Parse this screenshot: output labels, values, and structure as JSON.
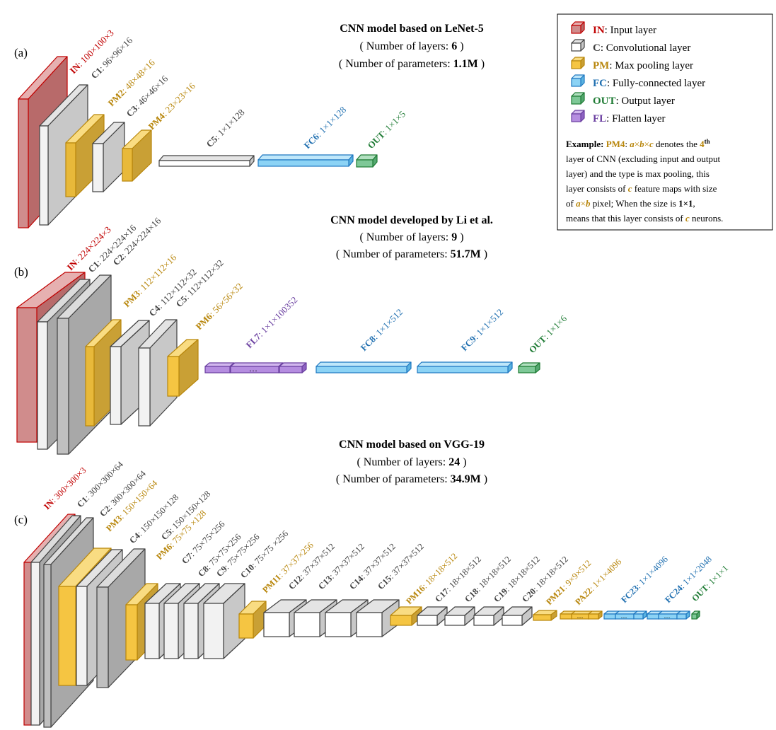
{
  "colors": {
    "input": {
      "front": "#d08c8c",
      "side": "#b86a6a",
      "top": "#e6b0b0",
      "stroke": "#c00000",
      "text": "#c00000"
    },
    "conv": {
      "front": "#ffffff",
      "side": "#c8c8c8",
      "top": "#e4e4e4",
      "stroke": "#404040",
      "text": "#404040"
    },
    "conv_big": {
      "front": "#c0c0c0",
      "side": "#a8a8a8",
      "top": "#dcdcdc",
      "stroke": "#404040"
    },
    "pool": {
      "front": "#f5c542",
      "side": "#c9a035",
      "top": "#f9dc82",
      "stroke": "#b8860b",
      "text": "#b8860b"
    },
    "fc": {
      "front": "#8cd3f5",
      "side": "#5bb3e0",
      "top": "#bfe7fa",
      "stroke": "#1f78c1",
      "text": "#1f6fb0"
    },
    "out": {
      "front": "#7ec897",
      "side": "#54a870",
      "top": "#b2e0c0",
      "stroke": "#1e7b34",
      "text": "#1e7b34"
    },
    "flatten": {
      "front": "#b58de0",
      "side": "#8e63c2",
      "top": "#d2b8ee",
      "stroke": "#6a3fa0",
      "text": "#6a3fa0"
    }
  },
  "panels": {
    "a": {
      "label": "(a)",
      "title": "CNN model based on LeNet-5",
      "layers_line_prefix": "( Number of layers: ",
      "layers_value": "6",
      "layers_line_suffix": " )",
      "params_line_prefix": "( Number of parameters: ",
      "params_value": "1.1M",
      "params_line_suffix": " )",
      "layer_labels": [
        {
          "name": "IN",
          "size": ": 100×100×3",
          "kind": "input"
        },
        {
          "name": "C1",
          "size": ": 96×96×16",
          "kind": "conv"
        },
        {
          "name": "PM2",
          "size": ": 48×48×16",
          "kind": "pool"
        },
        {
          "name": "C3",
          "size": ": 46×46×16",
          "kind": "conv"
        },
        {
          "name": "PM4",
          "size": ": 23×23×16",
          "kind": "pool"
        },
        {
          "name": "C5",
          "size": ": 1×1×128",
          "kind": "conv"
        },
        {
          "name": "FC6",
          "size": ": 1×1×128",
          "kind": "fc"
        },
        {
          "name": "OUT",
          "size": ": 1×1×5",
          "kind": "out"
        }
      ]
    },
    "b": {
      "label": "(b)",
      "title": "CNN model developed by Li et al.",
      "layers_line_prefix": "( Number of layers: ",
      "layers_value": "9",
      "layers_line_suffix": " )",
      "params_line_prefix": "( Number of parameters: ",
      "params_value": "51.7M",
      "params_line_suffix": " )",
      "layer_labels": [
        {
          "name": "IN",
          "size": ": 224×224×3",
          "kind": "input"
        },
        {
          "name": "C1",
          "size": ": 224×224×16",
          "kind": "conv"
        },
        {
          "name": "C2",
          "size": ": 224×224×16",
          "kind": "conv"
        },
        {
          "name": "PM3",
          "size": ": 112×112×16",
          "kind": "pool"
        },
        {
          "name": "C4",
          "size": ": 112×112×32",
          "kind": "conv"
        },
        {
          "name": "C5",
          "size": ": 112×112×32",
          "kind": "conv"
        },
        {
          "name": "PM6",
          "size": ": 56×56×32",
          "kind": "pool"
        },
        {
          "name": "FL7",
          "size": ": 1×1×100352",
          "kind": "flatten"
        },
        {
          "name": "FC8",
          "size": ": 1×1×512",
          "kind": "fc"
        },
        {
          "name": "FC9",
          "size": ": 1×1×512",
          "kind": "fc"
        },
        {
          "name": "OUT",
          "size": ": 1×1×6",
          "kind": "out"
        }
      ],
      "ellipsis": "…"
    },
    "c": {
      "label": "(c)",
      "title": "CNN model based on VGG-19",
      "layers_line_prefix": "( Number of layers: ",
      "layers_value": "24",
      "layers_line_suffix": " )",
      "params_line_prefix": "( Number of parameters: ",
      "params_value": "34.9M",
      "params_line_suffix": " )",
      "layer_labels": [
        {
          "name": "IN",
          "size": ": 300×300×3",
          "kind": "input"
        },
        {
          "name": "C1",
          "size": ": 300×300×64",
          "kind": "conv"
        },
        {
          "name": "C2",
          "size": ": 300×300×64",
          "kind": "conv"
        },
        {
          "name": "PM3",
          "size": ": 150×150×64",
          "kind": "pool"
        },
        {
          "name": "C4",
          "size": ": 150×150×128",
          "kind": "conv"
        },
        {
          "name": "C5",
          "size": ": 150×150×128",
          "kind": "conv"
        },
        {
          "name": "PM6",
          "size": ": 75×75 ×128",
          "kind": "pool"
        },
        {
          "name": "C7",
          "size": ": 75×75×256",
          "kind": "conv"
        },
        {
          "name": "C8",
          "size": ": 75×75×256",
          "kind": "conv"
        },
        {
          "name": "C9",
          "size": ": 75×75×256",
          "kind": "conv"
        },
        {
          "name": "C10",
          "size": ": 75×75 ×256",
          "kind": "conv"
        },
        {
          "name": "PM11",
          "size": ": 37×37×256",
          "kind": "pool"
        },
        {
          "name": "C12",
          "size": ": 37×37×512",
          "kind": "conv"
        },
        {
          "name": "C13",
          "size": ": 37×37×512",
          "kind": "conv"
        },
        {
          "name": "C14",
          "size": ": 37×37×512",
          "kind": "conv"
        },
        {
          "name": "C15",
          "size": ": 37×37×512",
          "kind": "conv"
        },
        {
          "name": "PM16",
          "size": ": 18×18×512",
          "kind": "pool"
        },
        {
          "name": "C17",
          "size": ": 18×18×512",
          "kind": "conv"
        },
        {
          "name": "C18",
          "size": ": 18×18×512",
          "kind": "conv"
        },
        {
          "name": "C19",
          "size": ": 18×18×512",
          "kind": "conv"
        },
        {
          "name": "C20",
          "size": ": 18×18×512",
          "kind": "conv"
        },
        {
          "name": "PM21",
          "size": ": 9×9×512",
          "kind": "pool"
        },
        {
          "name": "PA22",
          "size": ": 1×1×4096",
          "kind": "pool"
        },
        {
          "name": "FC23",
          "size": ": 1×1×4096",
          "kind": "fc"
        },
        {
          "name": "FC24",
          "size": ": 1×1×2048",
          "kind": "fc"
        },
        {
          "name": "OUT",
          "size": ": 1×1×1",
          "kind": "out"
        }
      ],
      "ellipsis": "…"
    }
  },
  "legend": {
    "items": [
      {
        "abbr": "IN",
        "desc": ": Input layer",
        "kind": "input"
      },
      {
        "abbr": "C",
        "desc": ": Convolutional layer",
        "kind": "conv"
      },
      {
        "abbr": "PM",
        "desc": ": Max pooling layer",
        "kind": "pool"
      },
      {
        "abbr": "FC",
        "desc": ": Fully-connected layer",
        "kind": "fc"
      },
      {
        "abbr": "OUT",
        "desc": ": Output layer",
        "kind": "out"
      },
      {
        "abbr": "FL",
        "desc": ": Flatten layer",
        "kind": "flatten"
      }
    ],
    "example": {
      "bold_prefix": "Example: ",
      "name": "PM4",
      "formula_a": "a",
      "times1": "×",
      "formula_b": "b",
      "times2": "×",
      "formula_c": "c",
      "text1": " denotes the ",
      "ordinal": "4",
      "ordinal_sup": "th",
      "line2": "layer of CNN (excluding input and output",
      "line3": "layer) and the type is max pooling, this",
      "line4_pre": "layer consists of ",
      "line4_c": "c",
      "line4_post": " feature maps with size",
      "line5_pre": "of ",
      "line5_a": "a",
      "line5_x": "×",
      "line5_b": "b",
      "line5_mid": " pixel; When the size is ",
      "line5_bold": "1×1",
      "line5_end": ",",
      "line6_pre": "means that this layer consists of ",
      "line6_c": "c",
      "line6_post": " neurons."
    }
  }
}
